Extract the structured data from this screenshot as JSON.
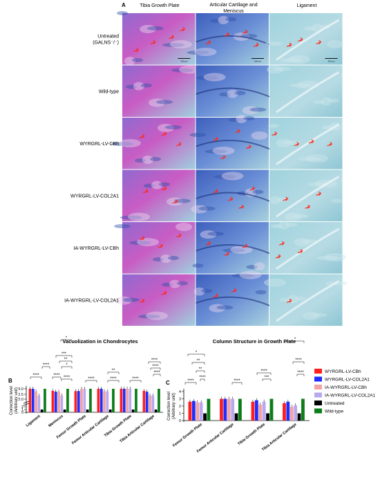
{
  "panel_a": {
    "letter": "A",
    "columns": [
      "Tibia Growth Plate",
      "Articular Cartilage and\nMeniscus",
      "Ligament"
    ],
    "rows": [
      {
        "label": "Untreated\n(GALNS⁻/⁻)",
        "arrows": [
          [
            0.22,
            0.7
          ],
          [
            0.45,
            0.55
          ],
          [
            0.7,
            0.45
          ],
          [
            0.85,
            0.3
          ],
          [
            1.2,
            0.55
          ],
          [
            1.45,
            0.4
          ],
          [
            1.7,
            0.35
          ],
          [
            1.85,
            0.6
          ],
          [
            2.3,
            0.6
          ],
          [
            2.45,
            0.5
          ],
          [
            2.7,
            0.55
          ]
        ]
      },
      {
        "label": "Wild-type",
        "arrows": []
      },
      {
        "label": "WYRGRL-LV-CBh",
        "arrows": [
          [
            0.3,
            0.35
          ],
          [
            0.6,
            0.3
          ],
          [
            0.8,
            0.5
          ],
          [
            1.3,
            0.4
          ],
          [
            1.6,
            0.25
          ],
          [
            1.75,
            0.55
          ],
          [
            1.4,
            0.75
          ],
          [
            2.1,
            0.3
          ],
          [
            2.4,
            0.5
          ],
          [
            2.6,
            0.45
          ],
          [
            2.85,
            0.5
          ]
        ]
      },
      {
        "label": "WYRGRL-LV-COL2A1",
        "arrows": [
          [
            0.35,
            0.4
          ],
          [
            0.6,
            0.35
          ],
          [
            0.75,
            0.6
          ],
          [
            1.3,
            0.4
          ],
          [
            1.5,
            0.55
          ],
          [
            1.8,
            0.35
          ],
          [
            1.65,
            0.7
          ],
          [
            2.25,
            0.55
          ],
          [
            2.55,
            0.7
          ],
          [
            2.7,
            0.45
          ]
        ]
      },
      {
        "label": "IA-WYRGRL-LV-CBh",
        "arrows": [
          [
            0.3,
            0.3
          ],
          [
            0.55,
            0.45
          ],
          [
            0.8,
            0.25
          ],
          [
            1.2,
            0.4
          ],
          [
            1.45,
            0.6
          ],
          [
            1.7,
            0.45
          ],
          [
            2.2,
            0.4
          ],
          [
            2.45,
            0.55
          ],
          [
            2.15,
            0.65
          ]
        ]
      },
      {
        "label": "IA-WYRGRL-LV-COL2A1",
        "arrows": [
          [
            0.3,
            0.5
          ],
          [
            0.6,
            0.35
          ],
          [
            1.3,
            0.4
          ],
          [
            1.55,
            0.3
          ],
          [
            2.3,
            0.5
          ]
        ]
      }
    ],
    "scale_bar": "100 μm",
    "stain_colors": {
      "magenta": "#c45bc2",
      "blue": "#4a6fc7",
      "light": "#a9d4dc",
      "arrow": "#ff2a1a"
    }
  },
  "legend": [
    {
      "name": "WYRGRL-LV-CBh",
      "color": "#ff1f1f"
    },
    {
      "name": "WYRGRL-LV-COL2A1",
      "color": "#1f2dff"
    },
    {
      "name": "IA-WYRGRL-LV-CBh",
      "color": "#f2a3a3"
    },
    {
      "name": "IA-WYRGRL-LV-COL2A1",
      "color": "#b7a9ee"
    },
    {
      "name": "Untreated",
      "color": "#000000"
    },
    {
      "name": "Wild-type",
      "color": "#0b7d18"
    }
  ],
  "chart_data": [
    {
      "type": "bar",
      "letter": "B",
      "title": "Vacuolization in Chondrocytes",
      "ylabel": "Correction level\n(Arbitrary unit)",
      "ylim": [
        0,
        3
      ],
      "yticks": [
        "0",
        "1",
        "2",
        "2.0",
        "2.5",
        "3.0"
      ],
      "axis_break": true,
      "categories": [
        "Ligament",
        "Meniscus",
        "Femur Growth Plate",
        "Femur Articular Cartilage",
        "Tibia Growth Plate",
        "Tibia Articular Cartilage"
      ],
      "series": [
        {
          "name": "WYRGRL-LV-CBh",
          "values": [
            3.0,
            2.8,
            2.78,
            3.0,
            3.0,
            2.8
          ]
        },
        {
          "name": "WYRGRL-LV-COL2A1",
          "values": [
            3.0,
            2.72,
            2.78,
            3.0,
            3.0,
            2.72
          ]
        },
        {
          "name": "IA-WYRGRL-LV-CBh",
          "values": [
            2.75,
            2.72,
            3.0,
            2.75,
            3.0,
            2.35
          ]
        },
        {
          "name": "IA-WYRGRL-LV-COL2A1",
          "values": [
            2.35,
            2.35,
            3.0,
            2.75,
            3.0,
            2.35
          ]
        },
        {
          "name": "Untreated",
          "values": [
            1.0,
            1.0,
            1.0,
            1.0,
            1.0,
            1.0
          ]
        },
        {
          "name": "Wild-type",
          "values": [
            3.0,
            3.0,
            3.0,
            3.0,
            3.0,
            3.0
          ]
        }
      ],
      "significance": [
        "*",
        "****",
        "***",
        "**",
        "*",
        "****",
        "****",
        "****",
        "**",
        "****",
        "****",
        "****",
        "****",
        "****",
        "****"
      ]
    },
    {
      "type": "bar",
      "letter": "C",
      "title": "Column Structure in Growth Plate",
      "ylabel": "Correction level\n(Arbitrary unit)",
      "ylim": [
        0,
        4
      ],
      "yticks": [
        "0",
        "1",
        "2",
        "3",
        "4"
      ],
      "categories": [
        "Femur Growth Plate",
        "Femur Articular Cartilage",
        "Tibia Growth Plate",
        "Tibia Articular Cartilage"
      ],
      "series": [
        {
          "name": "WYRGRL-LV-CBh",
          "values": [
            2.6,
            3.0,
            2.6,
            2.4
          ]
        },
        {
          "name": "WYRGRL-LV-COL2A1",
          "values": [
            2.7,
            3.0,
            2.8,
            2.6
          ]
        },
        {
          "name": "IA-WYRGRL-LV-CBh",
          "values": [
            2.5,
            3.0,
            2.2,
            1.9
          ]
        },
        {
          "name": "IA-WYRGRL-LV-COL2A1",
          "values": [
            2.5,
            3.0,
            2.6,
            2.1
          ]
        },
        {
          "name": "Untreated",
          "values": [
            1.0,
            1.0,
            1.0,
            1.0
          ]
        },
        {
          "name": "Wild-type",
          "values": [
            3.0,
            3.0,
            3.0,
            3.0
          ]
        }
      ],
      "significance": [
        "*",
        "**",
        "**",
        "****",
        "****",
        "****",
        "****",
        "***",
        "*",
        "****",
        "****"
      ]
    }
  ]
}
